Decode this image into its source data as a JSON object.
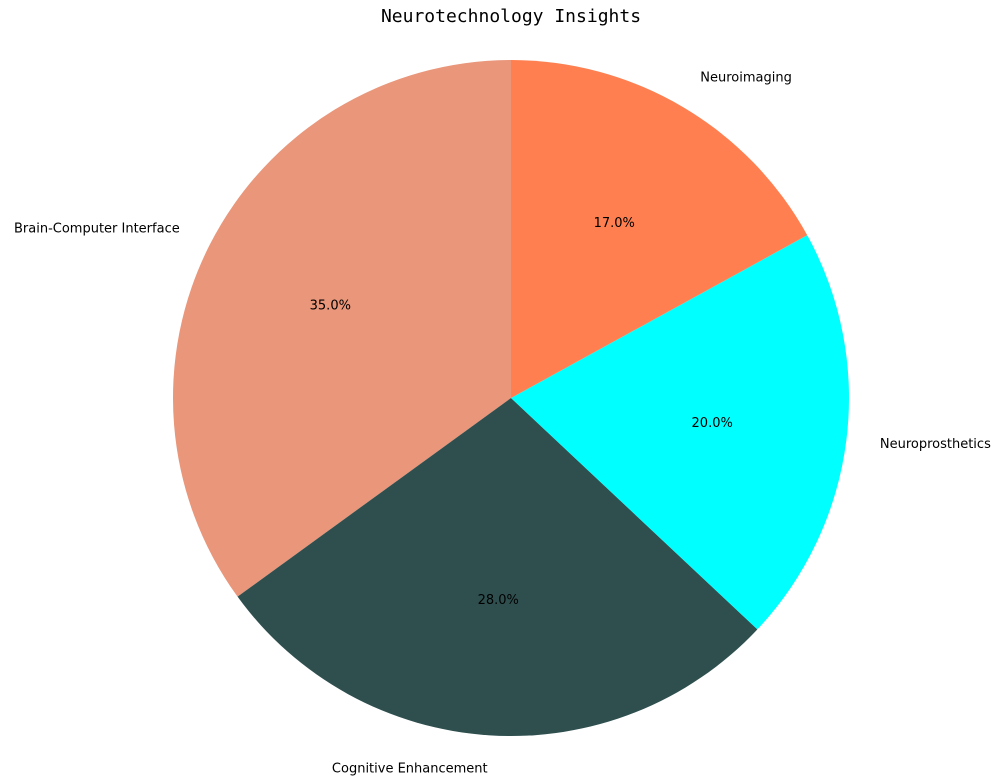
{
  "chart_data": {
    "type": "pie",
    "title": "Neurotechnology Insights",
    "start_angle_deg": 90,
    "direction": "counterclockwise",
    "slices": [
      {
        "label": "Brain-Computer Interface",
        "value": 35.0,
        "pct_label": "35.0%",
        "color": "#E9967A"
      },
      {
        "label": "Cognitive Enhancement",
        "value": 28.0,
        "pct_label": "28.0%",
        "color": "#2F4F4F"
      },
      {
        "label": "Neuroprosthetics",
        "value": 20.0,
        "pct_label": "20.0%",
        "color": "#00FFFF"
      },
      {
        "label": "Neuroimaging",
        "value": 17.0,
        "pct_label": "17.0%",
        "color": "#FF7F50"
      }
    ]
  }
}
